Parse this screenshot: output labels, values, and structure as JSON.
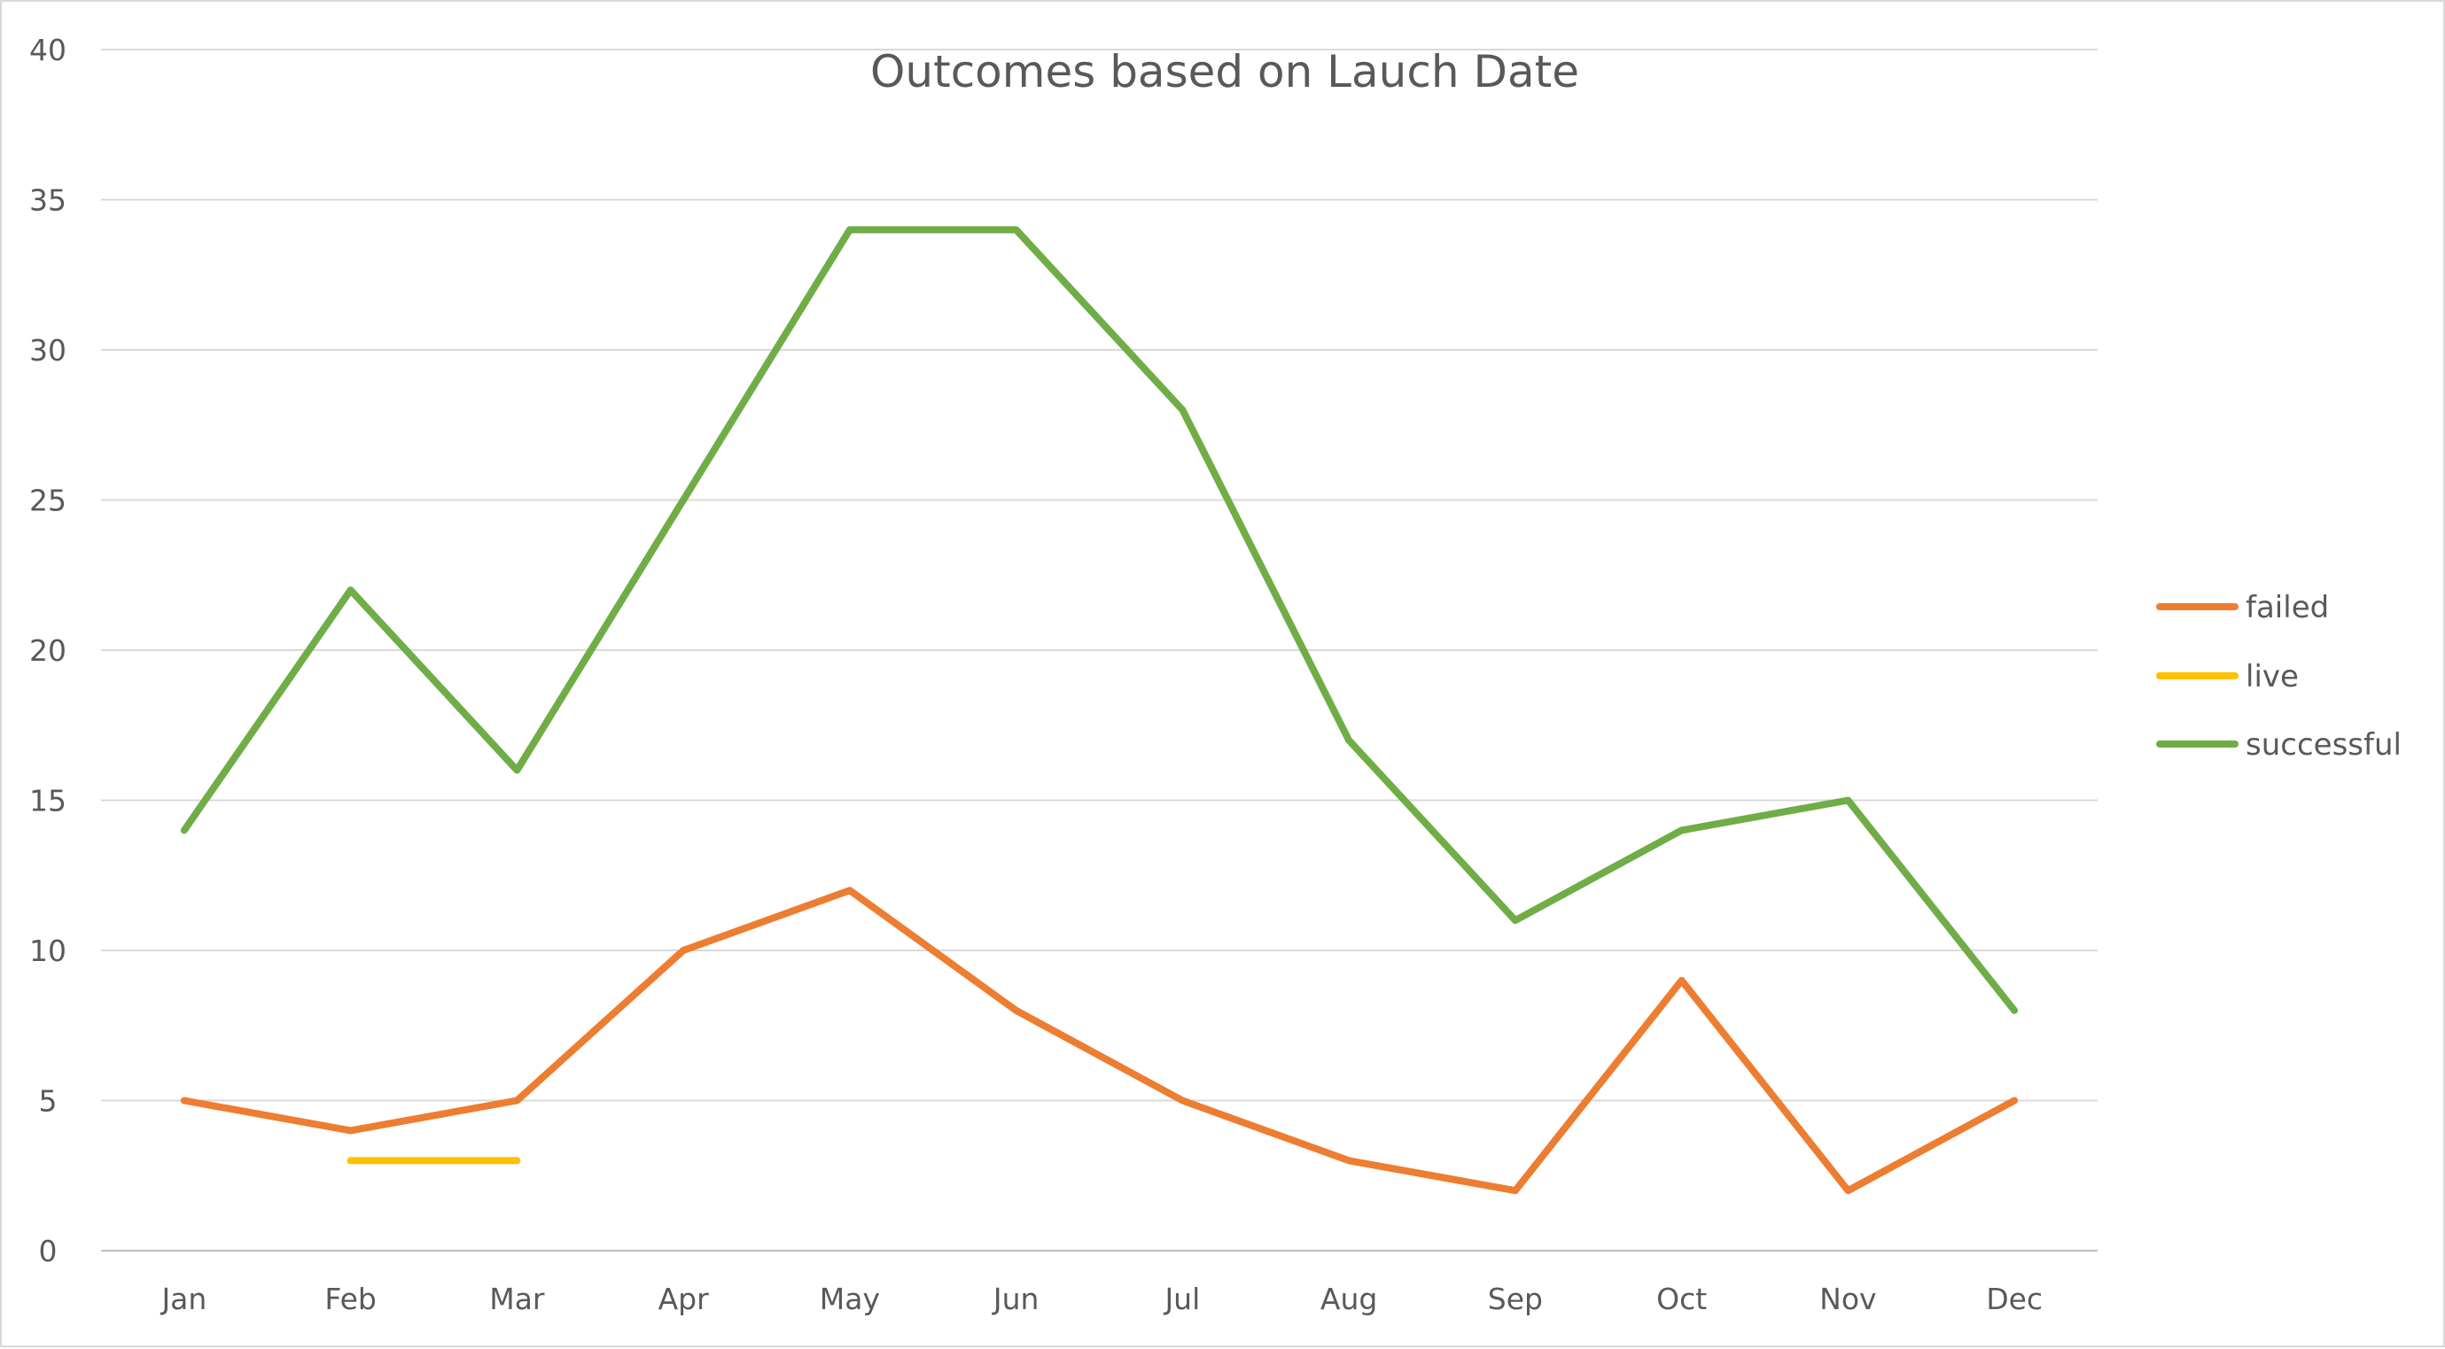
{
  "chart_data": {
    "type": "line",
    "title": "Outcomes based on Lauch Date",
    "xlabel": "",
    "ylabel": "",
    "categories": [
      "Jan",
      "Feb",
      "Mar",
      "Apr",
      "May",
      "Jun",
      "Jul",
      "Aug",
      "Sep",
      "Oct",
      "Nov",
      "Dec"
    ],
    "ylim": [
      0,
      40
    ],
    "yticks": [
      0,
      5,
      10,
      15,
      20,
      25,
      30,
      35,
      40
    ],
    "grid": true,
    "legend_position": "right",
    "series": [
      {
        "name": "failed",
        "color": "#ed7d31",
        "values": [
          5,
          4,
          5,
          10,
          12,
          8,
          5,
          3,
          2,
          9,
          2,
          5
        ]
      },
      {
        "name": "live",
        "color": "#ffc000",
        "values": [
          null,
          3,
          3,
          null,
          null,
          null,
          null,
          null,
          null,
          null,
          null,
          null
        ]
      },
      {
        "name": "successful",
        "color": "#70ad47",
        "values": [
          14,
          22,
          16,
          25,
          34,
          34,
          28,
          17,
          11,
          14,
          15,
          8
        ]
      }
    ]
  }
}
